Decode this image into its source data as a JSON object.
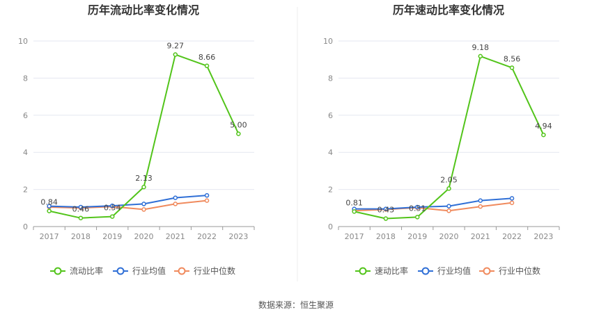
{
  "source": "数据来源：恒生聚源",
  "colors": {
    "main": "#52c41a",
    "avg": "#2f6fd6",
    "median": "#f08a5d",
    "grid": "#e4e7f0",
    "axis": "#999999"
  },
  "chart_data": [
    {
      "type": "line",
      "title": "历年流动比率变化情况",
      "x": [
        "2017",
        "2018",
        "2019",
        "2020",
        "2021",
        "2022",
        "2023"
      ],
      "ylim": [
        0,
        10
      ],
      "yticks": [
        0,
        2,
        4,
        6,
        8,
        10
      ],
      "grid": true,
      "legend_position": "bottom",
      "series": [
        {
          "name": "流动比率",
          "color": "#52c41a",
          "values": [
            0.84,
            0.46,
            0.54,
            2.13,
            9.27,
            8.66,
            5.0
          ],
          "labels": [
            "0.84",
            "0.46",
            "0.54",
            "2.13",
            "9.27",
            "8.66",
            "5.00"
          ]
        },
        {
          "name": "行业均值",
          "color": "#2f6fd6",
          "values": [
            1.1,
            1.05,
            1.12,
            1.22,
            1.55,
            1.68,
            null
          ]
        },
        {
          "name": "行业中位数",
          "color": "#f08a5d",
          "values": [
            1.05,
            1.0,
            1.08,
            0.92,
            1.22,
            1.4,
            null
          ]
        }
      ]
    },
    {
      "type": "line",
      "title": "历年速动比率变化情况",
      "x": [
        "2017",
        "2018",
        "2019",
        "2020",
        "2021",
        "2022",
        "2023"
      ],
      "ylim": [
        0,
        10
      ],
      "yticks": [
        0,
        2,
        4,
        6,
        8,
        10
      ],
      "grid": true,
      "legend_position": "bottom",
      "series": [
        {
          "name": "速动比率",
          "color": "#52c41a",
          "values": [
            0.81,
            0.43,
            0.51,
            2.05,
            9.18,
            8.56,
            4.94
          ],
          "labels": [
            "0.81",
            "0.43",
            "0.51",
            "2.05",
            "9.18",
            "8.56",
            "4.94"
          ]
        },
        {
          "name": "行业均值",
          "color": "#2f6fd6",
          "values": [
            0.95,
            0.95,
            1.05,
            1.1,
            1.4,
            1.52,
            null
          ]
        },
        {
          "name": "行业中位数",
          "color": "#f08a5d",
          "values": [
            0.85,
            0.92,
            1.02,
            0.85,
            1.08,
            1.28,
            null
          ]
        }
      ]
    }
  ]
}
